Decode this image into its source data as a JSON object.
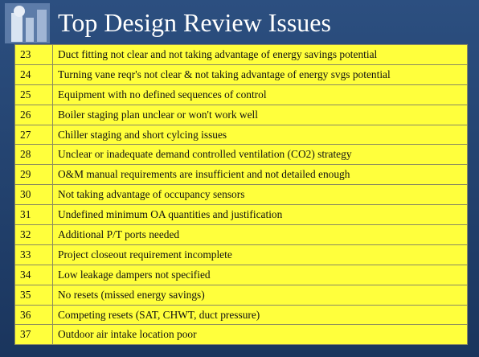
{
  "header": {
    "title": "Top Design Review Issues"
  },
  "table": {
    "rows": [
      [
        23,
        "Duct fitting not clear and not taking advantage of energy savings potential"
      ],
      [
        24,
        "Turning vane reqr's not clear & not taking advantage of energy svgs potential"
      ],
      [
        25,
        "Equipment with no defined sequences of control"
      ],
      [
        26,
        "Boiler staging plan unclear or won't work well"
      ],
      [
        27,
        "Chiller staging and short cylcing issues"
      ],
      [
        28,
        "Unclear or inadequate demand controlled ventilation (CO2) strategy"
      ],
      [
        29,
        "O&M manual requirements are insufficient and not detailed enough"
      ],
      [
        30,
        "Not taking advantage of occupancy sensors"
      ],
      [
        31,
        "Undefined minimum OA quantities and justification"
      ],
      [
        32,
        "Additional P/T ports needed"
      ],
      [
        33,
        "Project closeout requirement incomplete"
      ],
      [
        34,
        "Low leakage dampers not specified"
      ],
      [
        35,
        "No resets (missed energy savings)"
      ],
      [
        36,
        "Competing resets (SAT, CHWT, duct pressure)"
      ],
      [
        37,
        "Outdoor air intake location poor"
      ]
    ]
  }
}
